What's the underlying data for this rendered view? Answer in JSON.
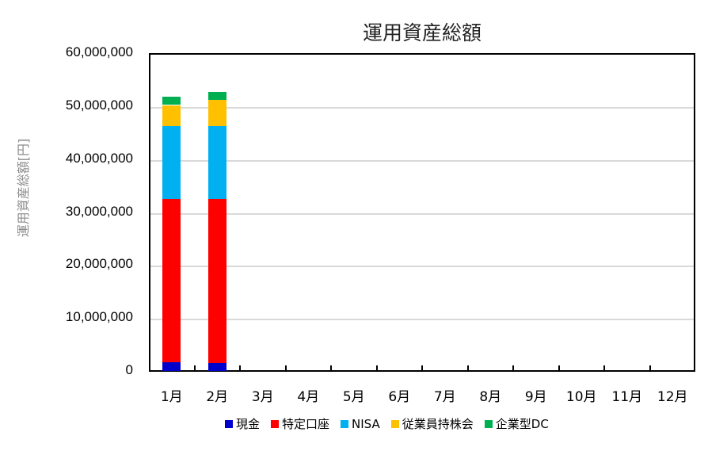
{
  "chart_data": {
    "type": "bar",
    "stacked": true,
    "title": "運用資産総額",
    "xlabel": "",
    "ylabel": "運用資産総額[円]",
    "ylim": [
      0,
      60000000
    ],
    "yticks": [
      "0",
      "10,000,000",
      "20,000,000",
      "30,000,000",
      "40,000,000",
      "50,000,000",
      "60,000,000"
    ],
    "ytick_values": [
      0,
      10000000,
      20000000,
      30000000,
      40000000,
      50000000,
      60000000
    ],
    "grid": true,
    "legend_position": "bottom",
    "categories": [
      "1月",
      "2月",
      "3月",
      "4月",
      "5月",
      "6月",
      "7月",
      "8月",
      "9月",
      "10月",
      "11月",
      "12月"
    ],
    "series": [
      {
        "name": "現金",
        "color": "#0000CC",
        "values": [
          1700000,
          1500000,
          0,
          0,
          0,
          0,
          0,
          0,
          0,
          0,
          0,
          0
        ]
      },
      {
        "name": "特定口座",
        "color": "#FF0000",
        "values": [
          30800000,
          31000000,
          0,
          0,
          0,
          0,
          0,
          0,
          0,
          0,
          0,
          0
        ]
      },
      {
        "name": "NISA",
        "color": "#00B0F0",
        "values": [
          13700000,
          13700000,
          0,
          0,
          0,
          0,
          0,
          0,
          0,
          0,
          0,
          0
        ]
      },
      {
        "name": "従業員持株会",
        "color": "#FFC000",
        "values": [
          4000000,
          4900000,
          0,
          0,
          0,
          0,
          0,
          0,
          0,
          0,
          0,
          0
        ]
      },
      {
        "name": "企業型DC",
        "color": "#00B050",
        "values": [
          1500000,
          1500000,
          0,
          0,
          0,
          0,
          0,
          0,
          0,
          0,
          0,
          0
        ]
      }
    ]
  }
}
